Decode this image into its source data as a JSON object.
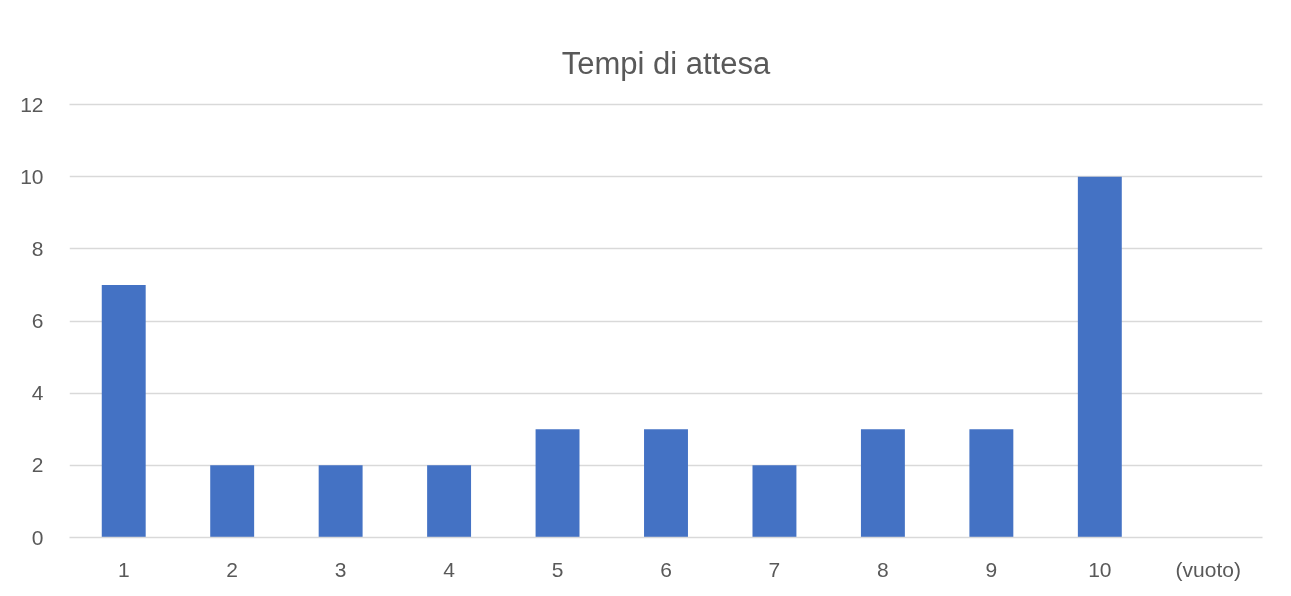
{
  "chart_data": {
    "type": "bar",
    "title": "Tempi di attesa",
    "categories": [
      "1",
      "2",
      "3",
      "4",
      "5",
      "6",
      "7",
      "8",
      "9",
      "10",
      "(vuoto)"
    ],
    "values": [
      7,
      2,
      2,
      2,
      3,
      3,
      2,
      3,
      3,
      10,
      null
    ],
    "color": "#4472c4",
    "ylim": [
      0,
      12
    ],
    "yticks": [
      0,
      2,
      4,
      6,
      8,
      10,
      12
    ],
    "grid": "y"
  }
}
